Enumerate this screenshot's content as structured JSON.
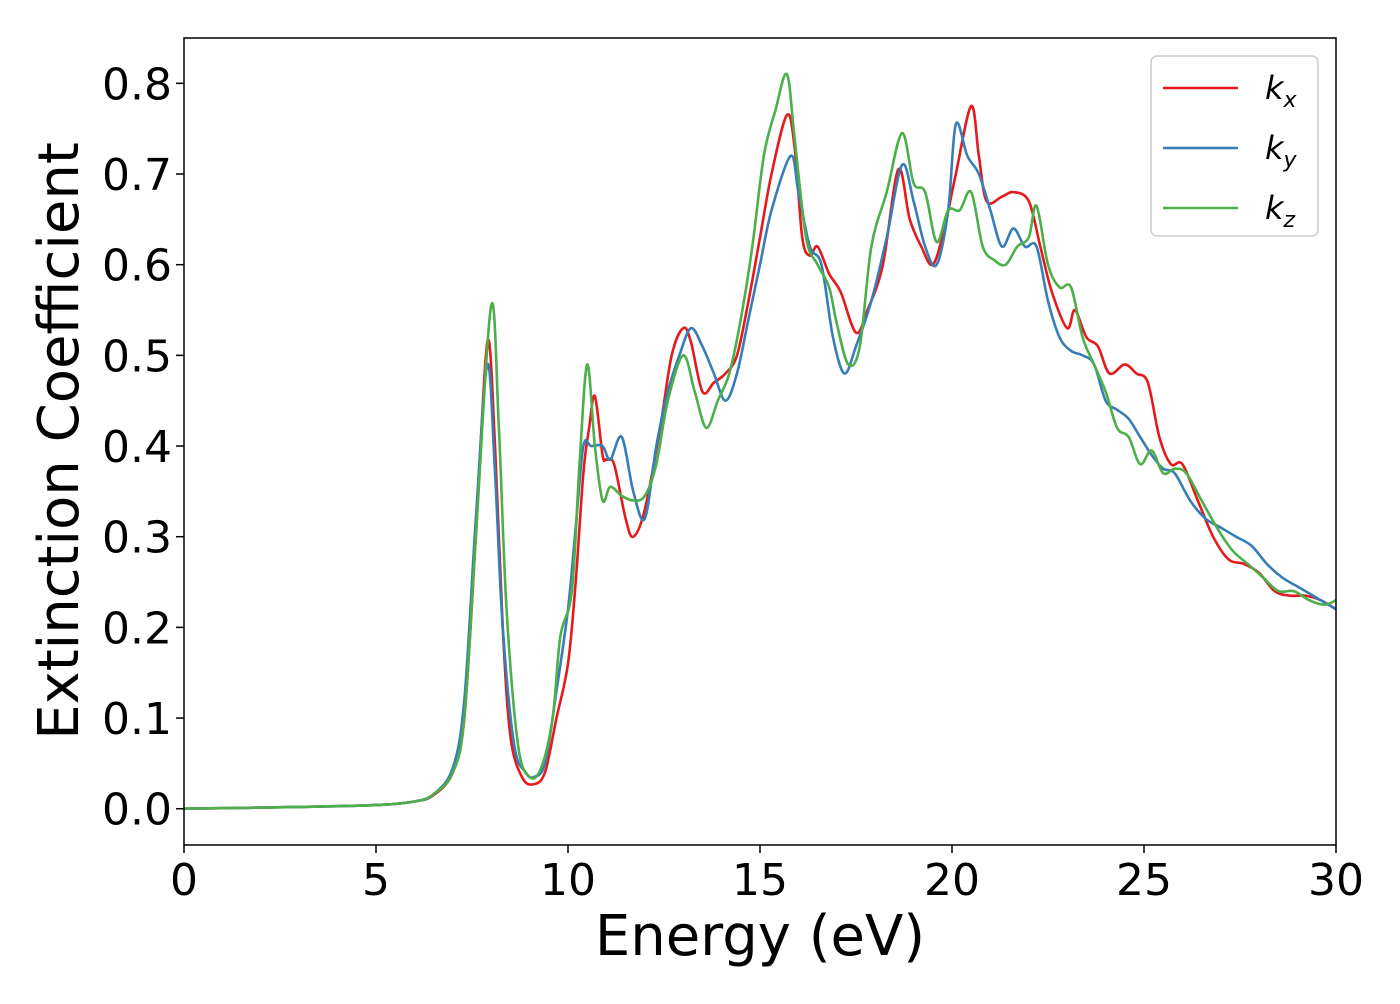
{
  "chart_data": {
    "type": "line",
    "xlabel": "Energy (eV)",
    "ylabel": "Extinction Coefficient",
    "xlim": [
      0,
      30
    ],
    "ylim": [
      -0.04,
      0.85
    ],
    "xticks": [
      0,
      5,
      10,
      15,
      20,
      25,
      30
    ],
    "yticks": [
      0.0,
      0.1,
      0.2,
      0.3,
      0.4,
      0.5,
      0.6,
      0.7,
      0.8
    ],
    "xtick_labels": [
      "0",
      "5",
      "10",
      "15",
      "20",
      "25",
      "30"
    ],
    "ytick_labels": [
      "0.0",
      "0.1",
      "0.2",
      "0.3",
      "0.4",
      "0.5",
      "0.6",
      "0.7",
      "0.8"
    ],
    "grid": false,
    "legend_position": "top-right",
    "series": [
      {
        "name": "k_x",
        "label_main": "k",
        "label_sub": "x",
        "color": "#e41a1c",
        "points": [
          [
            0,
            0.0
          ],
          [
            3,
            0.002
          ],
          [
            5,
            0.004
          ],
          [
            6,
            0.008
          ],
          [
            6.5,
            0.015
          ],
          [
            7,
            0.04
          ],
          [
            7.3,
            0.1
          ],
          [
            7.6,
            0.3
          ],
          [
            7.9,
            0.515
          ],
          [
            8.1,
            0.4
          ],
          [
            8.3,
            0.2
          ],
          [
            8.5,
            0.08
          ],
          [
            8.8,
            0.035
          ],
          [
            9.1,
            0.027
          ],
          [
            9.4,
            0.04
          ],
          [
            9.7,
            0.1
          ],
          [
            10.0,
            0.16
          ],
          [
            10.2,
            0.25
          ],
          [
            10.4,
            0.37
          ],
          [
            10.55,
            0.42
          ],
          [
            10.7,
            0.455
          ],
          [
            10.9,
            0.39
          ],
          [
            11.0,
            0.385
          ],
          [
            11.2,
            0.38
          ],
          [
            11.5,
            0.32
          ],
          [
            11.7,
            0.3
          ],
          [
            12.0,
            0.33
          ],
          [
            12.4,
            0.42
          ],
          [
            12.7,
            0.5
          ],
          [
            13.0,
            0.53
          ],
          [
            13.2,
            0.515
          ],
          [
            13.5,
            0.46
          ],
          [
            13.8,
            0.47
          ],
          [
            14.1,
            0.48
          ],
          [
            14.4,
            0.5
          ],
          [
            14.7,
            0.56
          ],
          [
            15.0,
            0.63
          ],
          [
            15.3,
            0.7
          ],
          [
            15.7,
            0.765
          ],
          [
            15.9,
            0.73
          ],
          [
            16.1,
            0.63
          ],
          [
            16.3,
            0.61
          ],
          [
            16.5,
            0.62
          ],
          [
            16.8,
            0.59
          ],
          [
            17.1,
            0.57
          ],
          [
            17.5,
            0.525
          ],
          [
            17.8,
            0.55
          ],
          [
            18.2,
            0.6
          ],
          [
            18.6,
            0.705
          ],
          [
            18.9,
            0.65
          ],
          [
            19.2,
            0.62
          ],
          [
            19.5,
            0.6
          ],
          [
            19.8,
            0.64
          ],
          [
            20.1,
            0.7
          ],
          [
            20.5,
            0.775
          ],
          [
            20.7,
            0.72
          ],
          [
            20.9,
            0.67
          ],
          [
            21.3,
            0.675
          ],
          [
            21.6,
            0.68
          ],
          [
            22.0,
            0.67
          ],
          [
            22.3,
            0.62
          ],
          [
            22.6,
            0.57
          ],
          [
            23.0,
            0.53
          ],
          [
            23.2,
            0.55
          ],
          [
            23.5,
            0.52
          ],
          [
            23.8,
            0.51
          ],
          [
            24.1,
            0.48
          ],
          [
            24.5,
            0.49
          ],
          [
            24.8,
            0.48
          ],
          [
            25.1,
            0.47
          ],
          [
            25.4,
            0.41
          ],
          [
            25.7,
            0.38
          ],
          [
            26.0,
            0.38
          ],
          [
            26.4,
            0.34
          ],
          [
            26.8,
            0.3
          ],
          [
            27.2,
            0.275
          ],
          [
            27.6,
            0.27
          ],
          [
            28.0,
            0.26
          ],
          [
            28.4,
            0.24
          ],
          [
            28.8,
            0.235
          ],
          [
            29.2,
            0.235
          ],
          [
            29.6,
            0.23
          ],
          [
            30,
            0.22
          ]
        ]
      },
      {
        "name": "k_y",
        "label_main": "k",
        "label_sub": "y",
        "color": "#377eb8",
        "points": [
          [
            0,
            0.0
          ],
          [
            3,
            0.002
          ],
          [
            5,
            0.004
          ],
          [
            6,
            0.008
          ],
          [
            6.5,
            0.016
          ],
          [
            7,
            0.045
          ],
          [
            7.3,
            0.12
          ],
          [
            7.6,
            0.32
          ],
          [
            7.9,
            0.49
          ],
          [
            8.1,
            0.37
          ],
          [
            8.3,
            0.2
          ],
          [
            8.6,
            0.07
          ],
          [
            8.9,
            0.04
          ],
          [
            9.1,
            0.035
          ],
          [
            9.4,
            0.05
          ],
          [
            9.7,
            0.13
          ],
          [
            10.0,
            0.22
          ],
          [
            10.2,
            0.31
          ],
          [
            10.4,
            0.4
          ],
          [
            10.6,
            0.4
          ],
          [
            10.9,
            0.4
          ],
          [
            11.1,
            0.385
          ],
          [
            11.4,
            0.41
          ],
          [
            11.7,
            0.35
          ],
          [
            12.0,
            0.32
          ],
          [
            12.3,
            0.4
          ],
          [
            12.6,
            0.46
          ],
          [
            12.9,
            0.5
          ],
          [
            13.2,
            0.53
          ],
          [
            13.5,
            0.51
          ],
          [
            13.8,
            0.48
          ],
          [
            14.1,
            0.45
          ],
          [
            14.4,
            0.48
          ],
          [
            14.7,
            0.54
          ],
          [
            15.0,
            0.6
          ],
          [
            15.3,
            0.66
          ],
          [
            15.8,
            0.72
          ],
          [
            16.0,
            0.68
          ],
          [
            16.3,
            0.62
          ],
          [
            16.6,
            0.6
          ],
          [
            16.9,
            0.52
          ],
          [
            17.2,
            0.48
          ],
          [
            17.5,
            0.51
          ],
          [
            17.9,
            0.56
          ],
          [
            18.3,
            0.63
          ],
          [
            18.7,
            0.71
          ],
          [
            19.0,
            0.67
          ],
          [
            19.3,
            0.62
          ],
          [
            19.6,
            0.6
          ],
          [
            19.9,
            0.66
          ],
          [
            20.1,
            0.755
          ],
          [
            20.4,
            0.72
          ],
          [
            20.7,
            0.7
          ],
          [
            21.0,
            0.66
          ],
          [
            21.3,
            0.62
          ],
          [
            21.6,
            0.64
          ],
          [
            21.9,
            0.62
          ],
          [
            22.2,
            0.62
          ],
          [
            22.5,
            0.56
          ],
          [
            22.8,
            0.52
          ],
          [
            23.1,
            0.505
          ],
          [
            23.4,
            0.5
          ],
          [
            23.7,
            0.49
          ],
          [
            24.0,
            0.45
          ],
          [
            24.3,
            0.44
          ],
          [
            24.6,
            0.43
          ],
          [
            24.9,
            0.41
          ],
          [
            25.2,
            0.39
          ],
          [
            25.5,
            0.375
          ],
          [
            25.8,
            0.37
          ],
          [
            26.2,
            0.34
          ],
          [
            26.6,
            0.32
          ],
          [
            27.0,
            0.31
          ],
          [
            27.4,
            0.3
          ],
          [
            27.8,
            0.29
          ],
          [
            28.2,
            0.27
          ],
          [
            28.6,
            0.255
          ],
          [
            29.0,
            0.245
          ],
          [
            29.4,
            0.235
          ],
          [
            30,
            0.22
          ]
        ]
      },
      {
        "name": "k_z",
        "label_main": "k",
        "label_sub": "z",
        "color": "#4daf4a",
        "points": [
          [
            0,
            0.0
          ],
          [
            3,
            0.002
          ],
          [
            5,
            0.004
          ],
          [
            6,
            0.008
          ],
          [
            6.5,
            0.016
          ],
          [
            7,
            0.04
          ],
          [
            7.3,
            0.1
          ],
          [
            7.6,
            0.3
          ],
          [
            8.0,
            0.555
          ],
          [
            8.2,
            0.42
          ],
          [
            8.4,
            0.22
          ],
          [
            8.7,
            0.07
          ],
          [
            9.0,
            0.035
          ],
          [
            9.3,
            0.045
          ],
          [
            9.6,
            0.1
          ],
          [
            9.8,
            0.19
          ],
          [
            10.1,
            0.24
          ],
          [
            10.3,
            0.38
          ],
          [
            10.5,
            0.49
          ],
          [
            10.7,
            0.4
          ],
          [
            10.9,
            0.34
          ],
          [
            11.1,
            0.355
          ],
          [
            11.4,
            0.345
          ],
          [
            11.7,
            0.34
          ],
          [
            12.0,
            0.345
          ],
          [
            12.3,
            0.38
          ],
          [
            12.6,
            0.45
          ],
          [
            13.0,
            0.5
          ],
          [
            13.3,
            0.46
          ],
          [
            13.6,
            0.42
          ],
          [
            13.9,
            0.45
          ],
          [
            14.2,
            0.48
          ],
          [
            14.5,
            0.54
          ],
          [
            14.8,
            0.62
          ],
          [
            15.1,
            0.72
          ],
          [
            15.4,
            0.77
          ],
          [
            15.7,
            0.81
          ],
          [
            15.9,
            0.74
          ],
          [
            16.2,
            0.63
          ],
          [
            16.5,
            0.6
          ],
          [
            16.8,
            0.575
          ],
          [
            17.0,
            0.535
          ],
          [
            17.3,
            0.49
          ],
          [
            17.6,
            0.51
          ],
          [
            17.9,
            0.62
          ],
          [
            18.3,
            0.68
          ],
          [
            18.7,
            0.745
          ],
          [
            19.0,
            0.69
          ],
          [
            19.3,
            0.68
          ],
          [
            19.6,
            0.625
          ],
          [
            19.9,
            0.66
          ],
          [
            20.2,
            0.66
          ],
          [
            20.5,
            0.68
          ],
          [
            20.8,
            0.62
          ],
          [
            21.1,
            0.605
          ],
          [
            21.4,
            0.6
          ],
          [
            21.7,
            0.62
          ],
          [
            22.0,
            0.63
          ],
          [
            22.2,
            0.665
          ],
          [
            22.5,
            0.6
          ],
          [
            22.8,
            0.575
          ],
          [
            23.1,
            0.575
          ],
          [
            23.4,
            0.52
          ],
          [
            23.7,
            0.49
          ],
          [
            24.0,
            0.46
          ],
          [
            24.3,
            0.42
          ],
          [
            24.6,
            0.41
          ],
          [
            24.9,
            0.38
          ],
          [
            25.2,
            0.395
          ],
          [
            25.5,
            0.37
          ],
          [
            25.8,
            0.375
          ],
          [
            26.1,
            0.37
          ],
          [
            26.5,
            0.34
          ],
          [
            26.9,
            0.31
          ],
          [
            27.3,
            0.285
          ],
          [
            27.7,
            0.27
          ],
          [
            28.1,
            0.255
          ],
          [
            28.5,
            0.24
          ],
          [
            28.9,
            0.24
          ],
          [
            29.3,
            0.23
          ],
          [
            29.7,
            0.225
          ],
          [
            30,
            0.23
          ]
        ]
      }
    ]
  }
}
